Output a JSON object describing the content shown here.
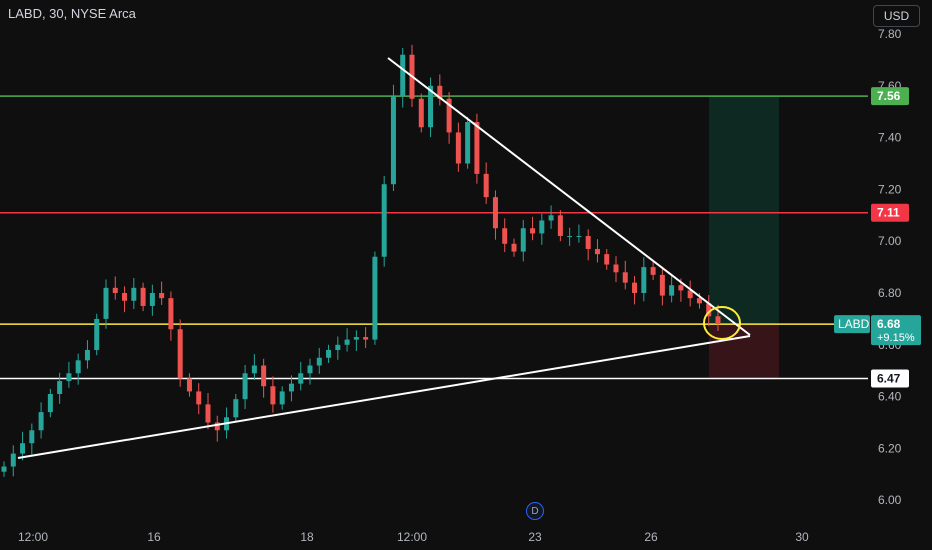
{
  "header": {
    "title": "LABD, 30, NYSE Arca",
    "currency": "USD"
  },
  "colors": {
    "background": "#0f0f0f",
    "up": "#26a69a",
    "down": "#ef5350",
    "resistance_green": "#4caf50",
    "resistance_red": "#f23645",
    "support_yellow": "#ffeb3b",
    "support_white": "#ffffff"
  },
  "price_axis": {
    "ticks": [
      "7.80",
      "7.60",
      "7.40",
      "7.20",
      "7.00",
      "6.80",
      "6.60",
      "6.40",
      "6.20",
      "6.00"
    ]
  },
  "time_axis": {
    "ticks": [
      "12:00",
      "16",
      "18",
      "12:00",
      "23",
      "26",
      "30"
    ]
  },
  "chart_data": {
    "type": "candlestick",
    "ylim": [
      5.95,
      7.85
    ],
    "grid": false,
    "x_ticks": [
      "12:00",
      "16",
      "18",
      "12:00",
      "23",
      "26",
      "30"
    ],
    "y_ticks": [
      7.8,
      7.6,
      7.4,
      7.2,
      7.0,
      6.8,
      6.6,
      6.4,
      6.2,
      6.0
    ],
    "horizontal_levels": [
      {
        "price": 7.56,
        "label": "7.56",
        "color": "#4caf50"
      },
      {
        "price": 7.11,
        "label": "7.11",
        "color": "#f23645"
      },
      {
        "price": 6.68,
        "color": "#ffeb3b"
      },
      {
        "price": 6.47,
        "label": "6.47",
        "color": "#ffffff"
      }
    ],
    "last_price": {
      "symbol": "LABD",
      "price": "6.68",
      "change": "+9.15%"
    },
    "closes": [
      6.13,
      6.18,
      6.22,
      6.27,
      6.34,
      6.41,
      6.46,
      6.49,
      6.54,
      6.58,
      6.7,
      6.82,
      6.8,
      6.77,
      6.82,
      6.75,
      6.8,
      6.78,
      6.66,
      6.47,
      6.42,
      6.37,
      6.3,
      6.27,
      6.32,
      6.39,
      6.49,
      6.52,
      6.44,
      6.37,
      6.42,
      6.45,
      6.49,
      6.52,
      6.55,
      6.58,
      6.6,
      6.62,
      6.63,
      6.62,
      6.94,
      7.22,
      7.56,
      7.72,
      7.55,
      7.44,
      7.6,
      7.55,
      7.42,
      7.3,
      7.46,
      7.26,
      7.17,
      7.05,
      6.99,
      6.96,
      7.05,
      7.03,
      7.08,
      7.1,
      7.02,
      7.02,
      7.02,
      6.97,
      6.95,
      6.91,
      6.88,
      6.84,
      6.8,
      6.9,
      6.87,
      6.79,
      6.83,
      6.81,
      6.78,
      6.76,
      6.71,
      6.68
    ]
  }
}
